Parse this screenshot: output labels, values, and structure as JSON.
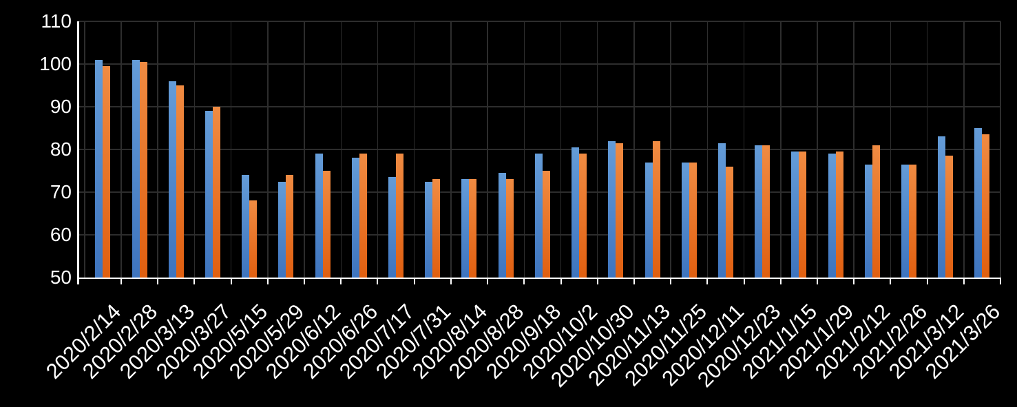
{
  "chart": {
    "background_color": "#000000",
    "axis_color": "#FFFFFF",
    "gridline_color": "#2D2D2D",
    "text_color": "#FFFFFF"
  },
  "chart_data": {
    "type": "bar",
    "title": "",
    "xlabel": "",
    "ylabel": "",
    "ylim": [
      50,
      110
    ],
    "yticks": [
      50,
      60,
      70,
      80,
      90,
      100,
      110
    ],
    "grid": "horizontal and vertical dark gridlines on black background",
    "legend": "none",
    "categories": [
      "2020/2/14",
      "2020/2/28",
      "2020/3/13",
      "2020/3/27",
      "2020/5/15",
      "2020/5/29",
      "2020/6/12",
      "2020/6/26",
      "2020/7/17",
      "2020/7/31",
      "2020/8/14",
      "2020/8/28",
      "2020/9/18",
      "2020/10/2",
      "2020/10/30",
      "2020/11/13",
      "2020/11/25",
      "2020/12/11",
      "2020/12/23",
      "2021/1/15",
      "2021/1/29",
      "2021/2/12",
      "2021/2/26",
      "2021/3/12",
      "2021/3/26"
    ],
    "series": [
      {
        "name": "blue",
        "color_top": "#649CD8",
        "color_bottom": "#3E74BE",
        "values": [
          101,
          101,
          96,
          89,
          74,
          72.5,
          79,
          78,
          73.5,
          72.5,
          73,
          74.5,
          79,
          80.5,
          82,
          77,
          77,
          81.5,
          81,
          79.5,
          79,
          76.5,
          76.5,
          83,
          85
        ]
      },
      {
        "name": "orange",
        "color_top": "#F08B42",
        "color_bottom": "#E05F10",
        "values": [
          99.5,
          100.5,
          95,
          90,
          68,
          74,
          75,
          79,
          79,
          73,
          73,
          73,
          75,
          79,
          81.5,
          82,
          77,
          76,
          81,
          79.5,
          79.5,
          81,
          76.5,
          78.5,
          83.5
        ]
      }
    ]
  }
}
